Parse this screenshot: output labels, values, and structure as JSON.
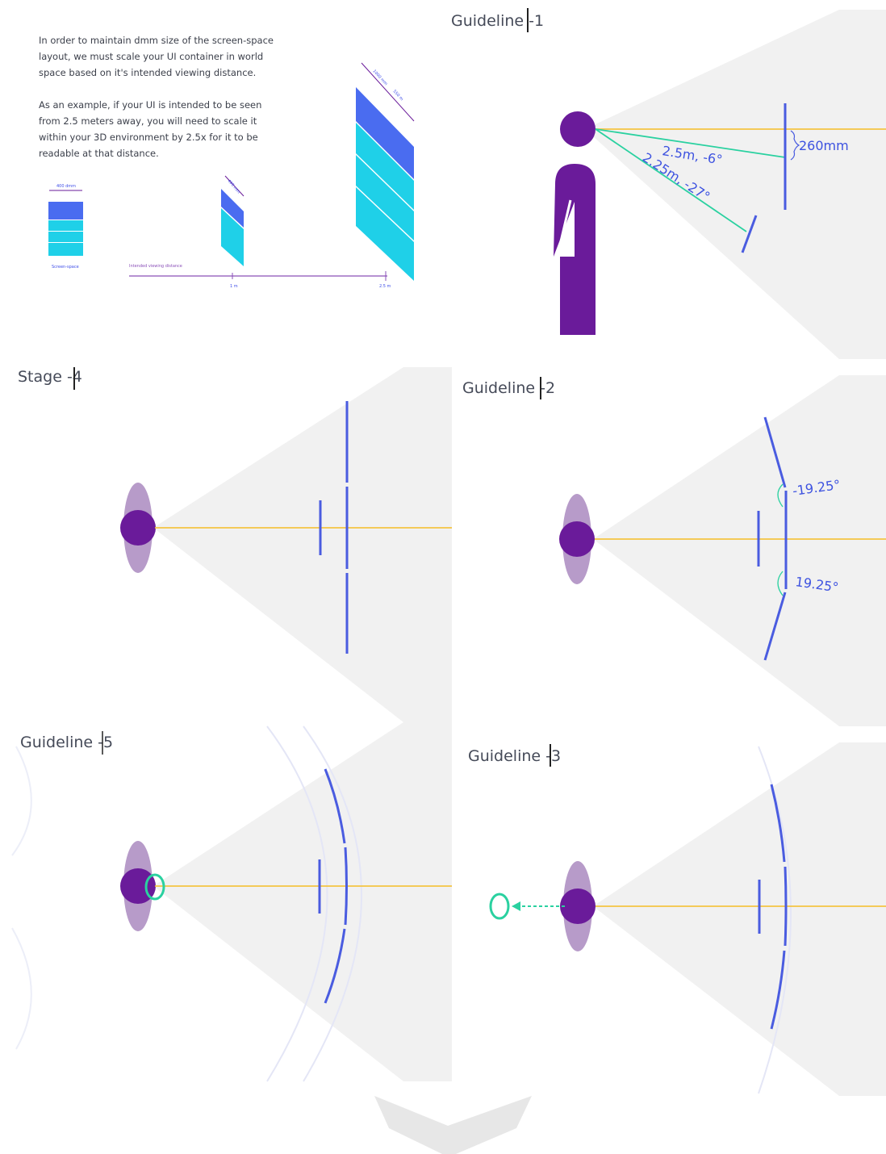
{
  "colors": {
    "purple": "#6a1b9a",
    "lavender": "#b79bc9",
    "blue": "#4a5ce0",
    "yellow": "#f4c542",
    "green": "#2ad1a0",
    "cone": "#f1f1f1",
    "label": "#3d52e0"
  },
  "intro": {
    "paragraph1": [
      "In order to maintain dmm size of the screen-space",
      "layout, we must scale your UI container in world",
      "space based on it's intended viewing distance."
    ],
    "paragraph2": [
      "As an example, if your UI is intended to be seen",
      "from 2.5 meters away, you will need to scale it",
      "within your 3D environment by 2.5x for it to be",
      "readable at that distance."
    ],
    "small_labels": {
      "card_width": "400 dmm",
      "card_caption": "Screen-space",
      "mid_width": "400 mm",
      "far_width": "1000 mm",
      "far_height": "550 m",
      "distance_title": "Intended viewing distance",
      "tick_1": "1 m",
      "tick_2": "2.5 m"
    }
  },
  "panels": {
    "guideline1": {
      "title": "Guideline -1",
      "label_far": "2.5m, -6°",
      "label_near": "2.25m, -27°",
      "label_height": "260mm"
    },
    "stage4": {
      "title": "Stage -4"
    },
    "guideline2": {
      "title": "Guideline -2",
      "angle_top": "-19.25°",
      "angle_bottom": "19.25°"
    },
    "guideline5": {
      "title": "Guideline -5"
    },
    "guideline3": {
      "title": "Guideline -3"
    }
  }
}
